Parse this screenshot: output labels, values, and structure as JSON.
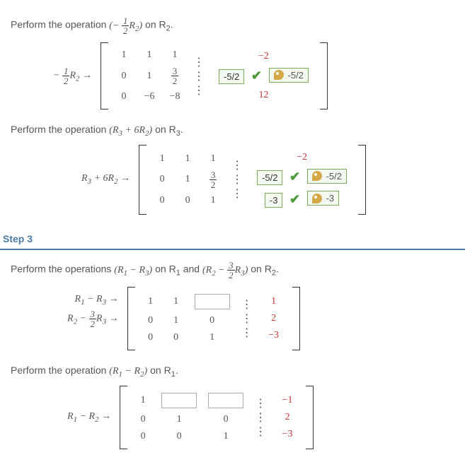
{
  "op1": {
    "instruction_pre": "Perform the operation ",
    "expr_html": "(− <span class='frac'><span class='num'>1</span><span class='den'>2</span></span><i>R</i><sub>2</sub>)",
    "instruction_post": " on  R",
    "sub": "2",
    "row_label_html": "− <span class='frac'><span class='num'>1</span><span class='den'>2</span></span><i>R</i><sub>2</sub> →",
    "r1c1": "1",
    "r1c2": "1",
    "r1c3": "1",
    "r2c1": "0",
    "r2c2": "1",
    "r2c3_html": "<span class='frac'><span class='num'>3</span><span class='den'>2</span></span>",
    "r3c1": "0",
    "r3c2": "−6",
    "r3c3": "−8",
    "aug1": "−2",
    "aug2_input": "-5/2",
    "aug3": "12",
    "key2": "-5/2"
  },
  "op2": {
    "instruction_pre": "Perform the operation ",
    "expr_html": "(<i>R</i><sub>3</sub> + 6<i>R</i><sub>2</sub>)",
    "instruction_post": " on  R",
    "sub": "3",
    "row_label_html": "<i>R</i><sub>3</sub> + 6<i>R</i><sub>2</sub> →",
    "r1c1": "1",
    "r1c2": "1",
    "r1c3": "1",
    "r2c1": "0",
    "r2c2": "1",
    "r2c3_html": "<span class='frac'><span class='num'>3</span><span class='den'>2</span></span>",
    "r3c1": "0",
    "r3c2": "0",
    "r3c3": "1",
    "aug1": "−2",
    "aug2_input": "-5/2",
    "key2": "-5/2",
    "aug3_input": "-3",
    "key3": "-3"
  },
  "step3": {
    "header": "Step 3",
    "instr_pre": "Perform the operations ",
    "expr1_html": "(<i>R</i><sub>1</sub> − <i>R</i><sub>3</sub>)",
    "mid1": " on  R",
    "sub1": "1",
    "and": "  and  ",
    "expr2_html": "(<i>R</i><sub>2</sub> − <span class='frac'><span class='num'>3</span><span class='den'>2</span></span><i>R</i><sub>3</sub>)",
    "mid2": " on  R",
    "sub2": "2"
  },
  "m3a": {
    "label1_html": "<i>R</i><sub>1</sub> − <i>R</i><sub>3</sub> →",
    "label2_html": "<i>R</i><sub>2</sub> − <span class='frac'><span class='num'>3</span><span class='den'>2</span></span><i>R</i><sub>3</sub> →",
    "r1c1": "1",
    "r1c2": "1",
    "r2c1": "0",
    "r2c2": "1",
    "r2c3": "0",
    "r3c1": "0",
    "r3c2": "0",
    "r3c3": "1",
    "aug1": "1",
    "aug2": "2",
    "aug3": "−3"
  },
  "op4": {
    "instruction_pre": "Perform the operation ",
    "expr_html": "(<i>R</i><sub>1</sub> − <i>R</i><sub>2</sub>)",
    "instruction_post": " on  R",
    "sub": "1",
    "label_html": "<i>R</i><sub>1</sub> − <i>R</i><sub>2</sub> →",
    "r1c1": "1",
    "r2c1": "0",
    "r2c2": "1",
    "r2c3": "0",
    "r3c1": "0",
    "r3c2": "0",
    "r3c3": "1",
    "aug1": "−1",
    "aug2": "2",
    "aug3": "−3"
  }
}
